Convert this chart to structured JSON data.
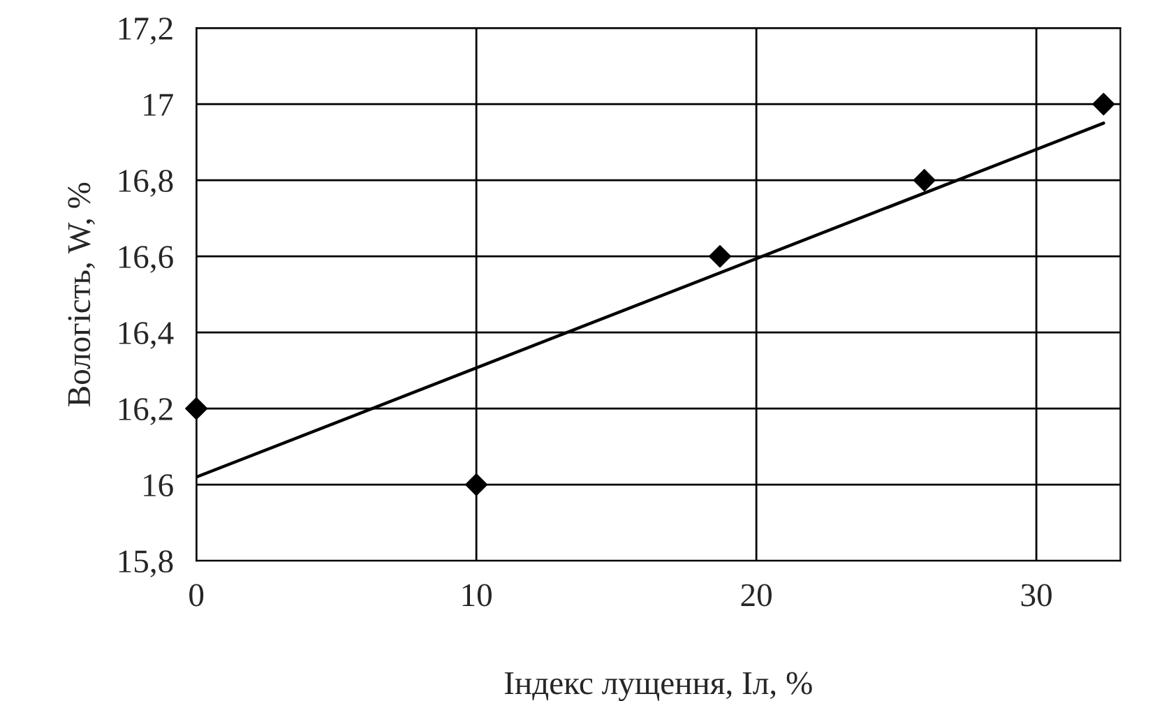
{
  "chart_data": {
    "type": "scatter",
    "xlabel": "Індекс лущення, Іл, %",
    "ylabel": "Вологість, W, %",
    "x": [
      0,
      10,
      18.7,
      26,
      32.4
    ],
    "series": [
      {
        "color": "#000000",
        "marker": "diamond",
        "values": [
          16.2,
          16.0,
          16.6,
          16.8,
          17.0
        ]
      },
      {
        "type": "line",
        "color": "#000000",
        "marker": "none",
        "line_style": "solid",
        "x": [
          0,
          32.4
        ],
        "values": [
          16.02,
          16.95
        ]
      }
    ],
    "xlim": [
      0,
      33
    ],
    "xticks": [
      0,
      10,
      20,
      30
    ],
    "ylim": [
      15.8,
      17.2
    ],
    "yticks": [
      {
        "value": 15.8,
        "label": "15,8"
      },
      16,
      {
        "value": 16.2,
        "label": "16,2"
      },
      {
        "value": 16.4,
        "label": "16,4"
      },
      {
        "value": 16.6,
        "label": "16,6"
      },
      {
        "value": 16.8,
        "label": "16,8"
      },
      17,
      {
        "value": 17.2,
        "label": "17,2"
      }
    ],
    "grid": true,
    "legend": false
  }
}
